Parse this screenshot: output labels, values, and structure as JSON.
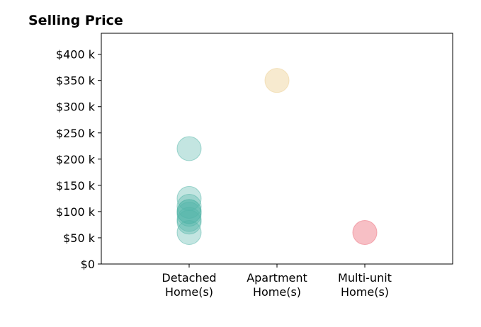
{
  "chart_data": {
    "type": "scatter",
    "title": "Selling Price",
    "xlabel": "",
    "ylabel": "",
    "categories": [
      "Detached\nHome(s)",
      "Apartment\nHome(s)",
      "Multi-unit\nHome(s)"
    ],
    "ylim": [
      0,
      440000
    ],
    "yticks": [
      0,
      50000,
      100000,
      150000,
      200000,
      250000,
      300000,
      350000,
      400000
    ],
    "ytick_labels": [
      "$0",
      "$50 k",
      "$100 k",
      "$150 k",
      "$200 k",
      "$250 k",
      "$300 k",
      "$350 k",
      "$400 k"
    ],
    "grid": false,
    "series": [
      {
        "category_index": 0,
        "color": "#52b5a8",
        "opacity": 0.35,
        "values": [
          220000,
          125000,
          110000,
          100000,
          100000,
          95000,
          85000,
          80000,
          60000
        ]
      },
      {
        "category_index": 1,
        "color": "#f0d9a8",
        "opacity": 0.55,
        "values": [
          350000
        ]
      },
      {
        "category_index": 2,
        "color": "#f08a95",
        "opacity": 0.55,
        "values": [
          60000
        ]
      }
    ]
  }
}
